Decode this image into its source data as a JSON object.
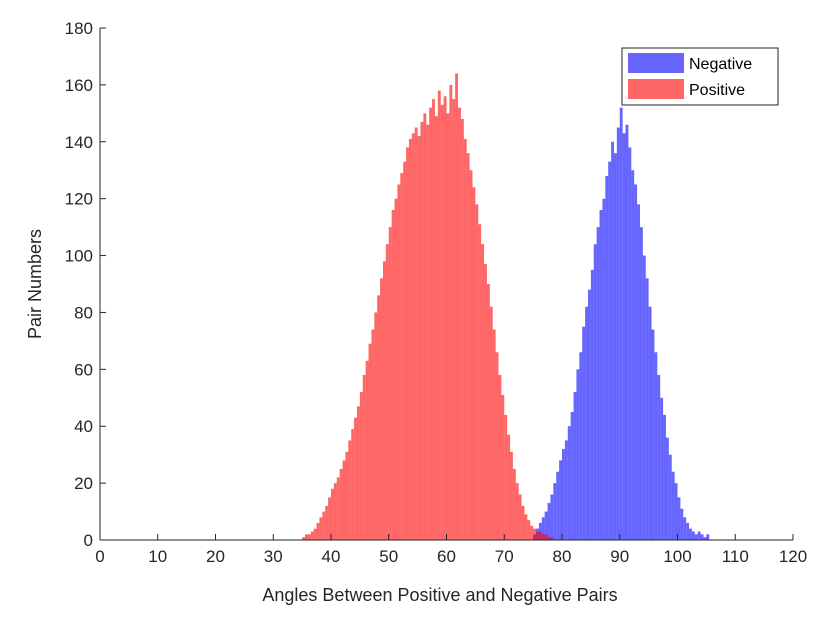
{
  "chart_data": {
    "type": "bar",
    "subtype": "overlapping-histogram",
    "xlabel": "Angles Between Positive and Negative Pairs",
    "ylabel": "Pair Numbers",
    "xlim": [
      0,
      120
    ],
    "ylim": [
      0,
      180
    ],
    "xticks": [
      0,
      10,
      20,
      30,
      40,
      50,
      60,
      70,
      80,
      90,
      100,
      110,
      120
    ],
    "yticks": [
      0,
      20,
      40,
      60,
      80,
      100,
      120,
      140,
      160,
      180
    ],
    "bin_width": 0.5,
    "grid": false,
    "legend_position": "top-right",
    "series": [
      {
        "name": "Negative",
        "color": "#0000ff",
        "opacity": 0.6,
        "bins": [
          [
            75.25,
            2
          ],
          [
            75.75,
            4
          ],
          [
            76.25,
            6
          ],
          [
            76.75,
            8
          ],
          [
            77.25,
            10
          ],
          [
            77.75,
            13
          ],
          [
            78.25,
            16
          ],
          [
            78.75,
            20
          ],
          [
            79.25,
            24
          ],
          [
            79.75,
            28
          ],
          [
            80.25,
            32
          ],
          [
            80.75,
            35
          ],
          [
            81.25,
            40
          ],
          [
            81.75,
            45
          ],
          [
            82.25,
            52
          ],
          [
            82.75,
            60
          ],
          [
            83.25,
            66
          ],
          [
            83.75,
            75
          ],
          [
            84.25,
            82
          ],
          [
            84.75,
            88
          ],
          [
            85.25,
            95
          ],
          [
            85.75,
            104
          ],
          [
            86.25,
            110
          ],
          [
            86.75,
            116
          ],
          [
            87.25,
            120
          ],
          [
            87.75,
            128
          ],
          [
            88.25,
            133
          ],
          [
            88.75,
            140
          ],
          [
            89.25,
            136
          ],
          [
            89.75,
            145
          ],
          [
            90.25,
            152
          ],
          [
            90.75,
            143
          ],
          [
            91.25,
            146
          ],
          [
            91.75,
            138
          ],
          [
            92.25,
            130
          ],
          [
            92.75,
            125
          ],
          [
            93.25,
            118
          ],
          [
            93.75,
            110
          ],
          [
            94.25,
            100
          ],
          [
            94.75,
            92
          ],
          [
            95.25,
            82
          ],
          [
            95.75,
            74
          ],
          [
            96.25,
            66
          ],
          [
            96.75,
            58
          ],
          [
            97.25,
            50
          ],
          [
            97.75,
            44
          ],
          [
            98.25,
            36
          ],
          [
            98.75,
            30
          ],
          [
            99.25,
            24
          ],
          [
            99.75,
            20
          ],
          [
            100.25,
            15
          ],
          [
            100.75,
            11
          ],
          [
            101.25,
            8
          ],
          [
            101.75,
            6
          ],
          [
            102.25,
            4
          ],
          [
            102.75,
            3
          ],
          [
            103.25,
            2
          ],
          [
            103.75,
            3
          ],
          [
            104.25,
            2
          ],
          [
            104.75,
            1
          ],
          [
            105.25,
            2
          ]
        ]
      },
      {
        "name": "Positive",
        "color": "#ff0000",
        "opacity": 0.6,
        "bins": [
          [
            35.25,
            1
          ],
          [
            35.75,
            2
          ],
          [
            36.25,
            2
          ],
          [
            36.75,
            3
          ],
          [
            37.25,
            4
          ],
          [
            37.75,
            6
          ],
          [
            38.25,
            8
          ],
          [
            38.75,
            10
          ],
          [
            39.25,
            12
          ],
          [
            39.75,
            15
          ],
          [
            40.25,
            18
          ],
          [
            40.75,
            20
          ],
          [
            41.25,
            22
          ],
          [
            41.75,
            25
          ],
          [
            42.25,
            28
          ],
          [
            42.75,
            31
          ],
          [
            43.25,
            35
          ],
          [
            43.75,
            39
          ],
          [
            44.25,
            43
          ],
          [
            44.75,
            47
          ],
          [
            45.25,
            52
          ],
          [
            45.75,
            58
          ],
          [
            46.25,
            63
          ],
          [
            46.75,
            69
          ],
          [
            47.25,
            74
          ],
          [
            47.75,
            80
          ],
          [
            48.25,
            86
          ],
          [
            48.75,
            92
          ],
          [
            49.25,
            98
          ],
          [
            49.75,
            104
          ],
          [
            50.25,
            110
          ],
          [
            50.75,
            116
          ],
          [
            51.25,
            120
          ],
          [
            51.75,
            125
          ],
          [
            52.25,
            129
          ],
          [
            52.75,
            133
          ],
          [
            53.25,
            138
          ],
          [
            53.75,
            141
          ],
          [
            54.25,
            143
          ],
          [
            54.75,
            145
          ],
          [
            55.25,
            142
          ],
          [
            55.75,
            147
          ],
          [
            56.25,
            150
          ],
          [
            56.75,
            146
          ],
          [
            57.25,
            152
          ],
          [
            57.75,
            155
          ],
          [
            58.25,
            149
          ],
          [
            58.75,
            158
          ],
          [
            59.25,
            153
          ],
          [
            59.75,
            156
          ],
          [
            60.25,
            150
          ],
          [
            60.75,
            160
          ],
          [
            61.25,
            155
          ],
          [
            61.75,
            164
          ],
          [
            62.25,
            152
          ],
          [
            62.75,
            148
          ],
          [
            63.25,
            141
          ],
          [
            63.75,
            136
          ],
          [
            64.25,
            130
          ],
          [
            64.75,
            124
          ],
          [
            65.25,
            118
          ],
          [
            65.75,
            111
          ],
          [
            66.25,
            104
          ],
          [
            66.75,
            97
          ],
          [
            67.25,
            90
          ],
          [
            67.75,
            82
          ],
          [
            68.25,
            74
          ],
          [
            68.75,
            66
          ],
          [
            69.25,
            58
          ],
          [
            69.75,
            51
          ],
          [
            70.25,
            44
          ],
          [
            70.75,
            37
          ],
          [
            71.25,
            31
          ],
          [
            71.75,
            25
          ],
          [
            72.25,
            20
          ],
          [
            72.75,
            16
          ],
          [
            73.25,
            12
          ],
          [
            73.75,
            9
          ],
          [
            74.25,
            7
          ],
          [
            74.75,
            5
          ],
          [
            75.25,
            4
          ],
          [
            75.75,
            3
          ],
          [
            76.25,
            3
          ],
          [
            76.75,
            2
          ],
          [
            77.25,
            2
          ],
          [
            77.75,
            1
          ],
          [
            78.25,
            1
          ]
        ]
      }
    ]
  }
}
